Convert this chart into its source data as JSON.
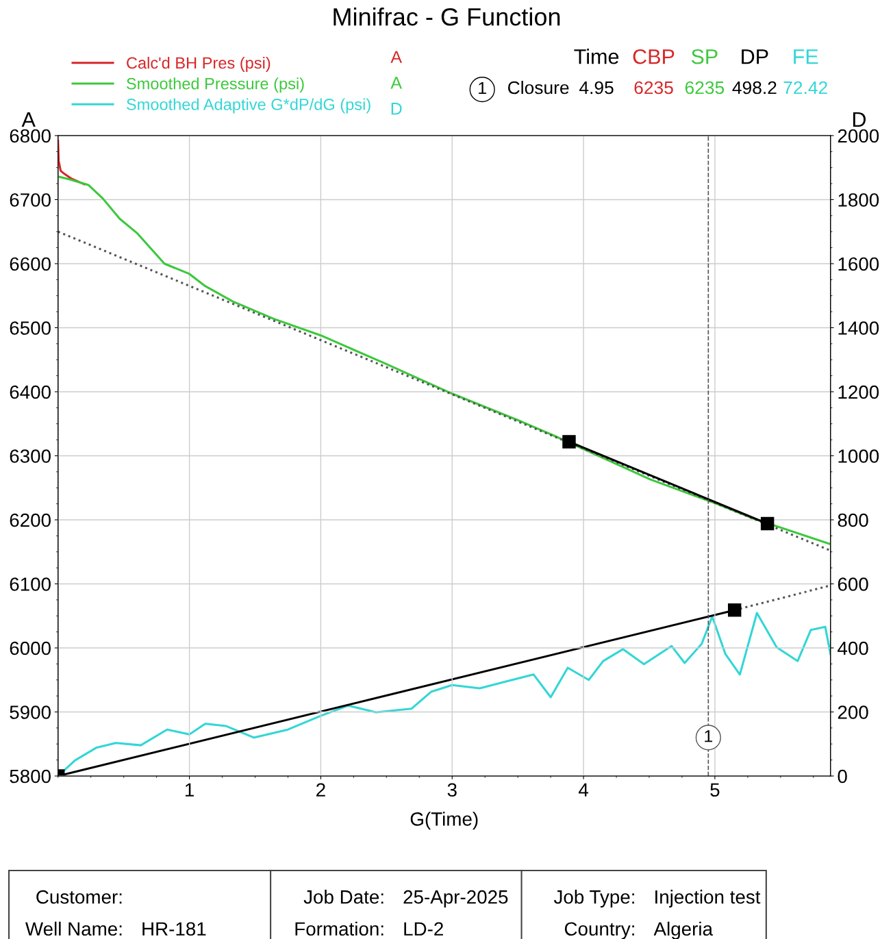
{
  "chart_data": {
    "type": "line",
    "title": "Minifrac - G Function",
    "xlabel": "G(Time)",
    "ylabel": "A",
    "y2label": "D",
    "xlim": [
      0,
      5.88
    ],
    "xticks": [
      1,
      2,
      3,
      4,
      5
    ],
    "ylim": [
      5800,
      6800
    ],
    "yticks": [
      5800,
      5900,
      6000,
      6100,
      6200,
      6300,
      6400,
      6500,
      6600,
      6700,
      6800
    ],
    "y2lim": [
      0,
      2000
    ],
    "y2ticks": [
      0,
      200,
      400,
      600,
      800,
      1000,
      1200,
      1400,
      1600,
      1800,
      2000
    ],
    "grid": true,
    "legend": "top left",
    "marker": "none",
    "line_style": "solid",
    "series": [
      {
        "name": "Calc'd BH Pres (psi)",
        "color": "#d62728",
        "x": [
          0,
          0.005,
          0.02,
          0.05,
          0.1,
          0.2
        ],
        "values": [
          6792,
          6760,
          6745,
          6740,
          6733,
          6724
        ]
      },
      {
        "name": "Smoothed Pressure (psi)",
        "color": "#3cc83c",
        "x": [
          0,
          0.08,
          0.23,
          0.34,
          0.47,
          0.6,
          0.81,
          1.0,
          1.12,
          1.33,
          1.64,
          2.0,
          2.48,
          3.0,
          3.52,
          3.78,
          4.51,
          5.0,
          5.28,
          5.88
        ],
        "values": [
          6736,
          6732,
          6723,
          6702,
          6670,
          6648,
          6600,
          6584,
          6565,
          6541,
          6514,
          6488,
          6445,
          6397,
          6354,
          6331,
          6263,
          6226,
          6203,
          6162
        ]
      },
      {
        "name": "Smoothed Adaptive G*dP/dG (psi)",
        "color": "#33d6d6",
        "axis": "y2",
        "x": [
          0,
          0.13,
          0.29,
          0.44,
          0.63,
          0.83,
          1.0,
          1.12,
          1.28,
          1.49,
          1.75,
          2.0,
          2.21,
          2.42,
          2.69,
          2.84,
          3.0,
          3.21,
          3.41,
          3.62,
          3.75,
          3.88,
          4.04,
          4.15,
          4.3,
          4.46,
          4.67,
          4.77,
          4.9,
          4.98,
          5.08,
          5.19,
          5.32,
          5.47,
          5.63,
          5.73,
          5.84,
          5.88
        ],
        "values": [
          0,
          49,
          88,
          103,
          96,
          145,
          130,
          163,
          156,
          120,
          145,
          188,
          220,
          199,
          210,
          263,
          284,
          274,
          295,
          317,
          246,
          338,
          300,
          359,
          396,
          349,
          406,
          353,
          413,
          498,
          381,
          317,
          509,
          402,
          359,
          456,
          466,
          381
        ]
      },
      {
        "color": "#555555",
        "line_style": "dotted",
        "x": [
          0,
          5.88
        ],
        "values": [
          6650,
          6152
        ]
      },
      {
        "color": "#000000",
        "marker": "square",
        "x": [
          3.89,
          5.4
        ],
        "values": [
          6322,
          6194
        ]
      },
      {
        "color": "#555555",
        "line_style": "dotted",
        "axis": "y2",
        "x": [
          5.15,
          5.88
        ],
        "values": [
          518,
          595
        ]
      },
      {
        "color": "#000000",
        "marker": "square",
        "axis": "y2",
        "x": [
          0,
          5.15
        ],
        "values": [
          0,
          518
        ]
      }
    ],
    "ref_lines": [
      {
        "axis": "x",
        "value": 4.95,
        "color": "#555555",
        "line_style": "dashed"
      }
    ],
    "annotations": [
      "A",
      "A",
      "D",
      "Time",
      "CBP",
      "SP",
      "DP",
      "FE",
      "1",
      "Closure",
      "4.95",
      "6235",
      "6235",
      "498.2",
      "72.42",
      "Customer:",
      "Job Date:",
      "25-Apr-2025",
      "Job Type:",
      "Injection test",
      "Well Name:",
      "HR-181",
      "Formation:",
      "LD-2",
      "Country:",
      "Algeria",
      {
        "text": "1",
        "x": 4.95,
        "y": 5860
      }
    ]
  }
}
